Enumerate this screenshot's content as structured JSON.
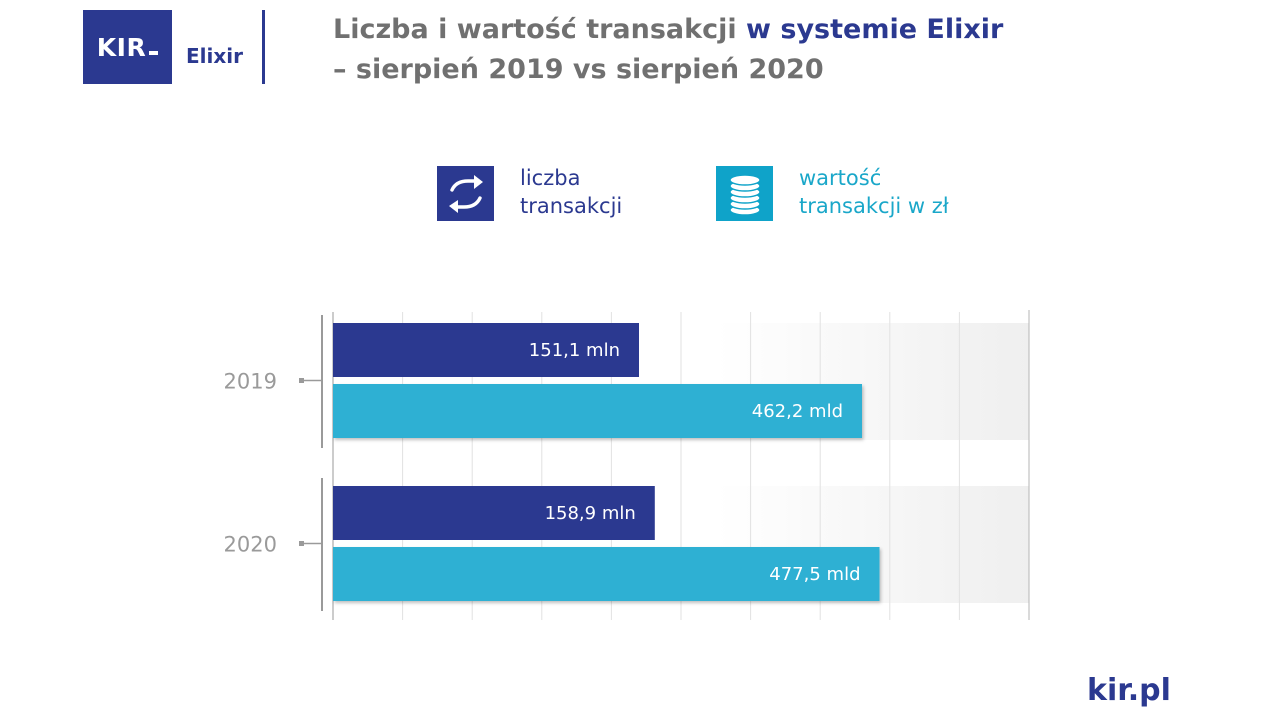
{
  "brand": {
    "kir": "KIR",
    "elixir": "Elixir",
    "website": "kir.pl",
    "colors": {
      "navy": "#2b3990",
      "teal": "#2eb0d3",
      "gray": "#707070"
    }
  },
  "title": {
    "part1": "Liczba i wartość transakcji",
    "part2": "w systemie Elixir",
    "line2": "– sierpień 2019 vs sierpień 2020"
  },
  "legend": [
    {
      "label1": "liczba",
      "label2": "transakcji",
      "icon": "exchange-arrows-icon",
      "color": "#2b3990"
    },
    {
      "label1": "wartość",
      "label2": "transakcji w zł",
      "icon": "coin-stack-icon",
      "color": "#2eb0d3"
    }
  ],
  "chart_data": {
    "type": "bar",
    "orientation": "horizontal",
    "categories": [
      "2019",
      "2020"
    ],
    "series": [
      {
        "name": "liczba transakcji",
        "values": [
          151.1,
          158.9
        ],
        "labels": [
          "151,1 mln",
          "158,9 mln"
        ],
        "color": "#2b3990"
      },
      {
        "name": "wartość transakcji w zł",
        "values": [
          462.2,
          477.5
        ],
        "labels": [
          "462,2 mld",
          "477,5 mld"
        ],
        "color": "#2eb0d3"
      }
    ],
    "xlim": [
      0,
      600
    ],
    "grid": true,
    "legend_position": "top"
  }
}
